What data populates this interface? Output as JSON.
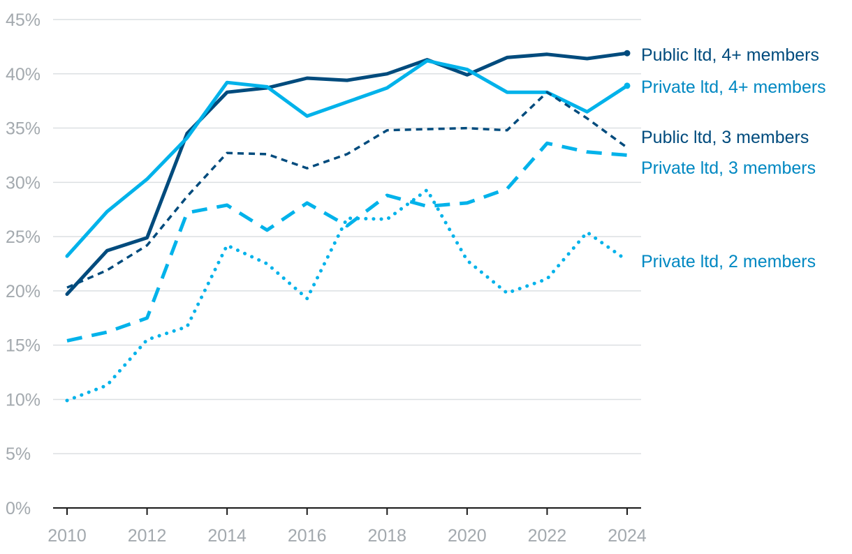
{
  "chart_data": {
    "type": "line",
    "title": "",
    "xlabel": "",
    "ylabel": "",
    "x": [
      2010,
      2011,
      2012,
      2013,
      2014,
      2015,
      2016,
      2017,
      2018,
      2019,
      2020,
      2021,
      2022,
      2023,
      2024
    ],
    "xticks": [
      "2010",
      "2012",
      "2014",
      "2016",
      "2018",
      "2020",
      "2022",
      "2024"
    ],
    "yticks": [
      "0%",
      "5%",
      "10%",
      "15%",
      "20%",
      "25%",
      "30%",
      "35%",
      "40%",
      "45%"
    ],
    "ylim": [
      0,
      45
    ],
    "grid": true,
    "legend": "direct labels at right",
    "series": [
      {
        "name": "Public ltd, 4+ members",
        "color": "#004b7d",
        "style": "solid",
        "values": [
          19.7,
          23.7,
          24.9,
          34.5,
          38.3,
          38.7,
          39.6,
          39.4,
          40.0,
          41.3,
          39.9,
          41.5,
          41.8,
          41.4,
          41.9
        ]
      },
      {
        "name": "Private ltd, 4+ members",
        "color": "#00b2ea",
        "style": "solid",
        "values": [
          23.2,
          27.3,
          30.3,
          34.1,
          39.2,
          38.8,
          36.1,
          37.4,
          38.7,
          41.2,
          40.4,
          38.3,
          38.3,
          36.5,
          38.9
        ]
      },
      {
        "name": "Public ltd, 3 members",
        "color": "#004b7d",
        "style": "short-dash",
        "values": [
          20.3,
          21.9,
          24.2,
          28.7,
          32.7,
          32.6,
          31.3,
          32.6,
          34.8,
          34.9,
          35.0,
          34.8,
          38.3,
          35.9,
          33.2
        ]
      },
      {
        "name": "Private ltd, 3 members",
        "color": "#00b2ea",
        "style": "long-dash",
        "values": [
          15.4,
          16.2,
          17.5,
          27.2,
          27.9,
          25.6,
          28.1,
          26.0,
          28.8,
          27.8,
          28.1,
          29.4,
          33.6,
          32.8,
          32.5
        ]
      },
      {
        "name": "Private ltd, 2 members",
        "color": "#00b2ea",
        "style": "dotted",
        "values": [
          9.9,
          11.3,
          15.5,
          16.7,
          24.2,
          22.5,
          19.3,
          26.7,
          26.6,
          29.3,
          22.8,
          19.8,
          21.1,
          25.4,
          22.8
        ]
      }
    ],
    "label_colors": [
      "#004b7d",
      "#0088c2",
      "#004b7d",
      "#0088c2",
      "#0088c2"
    ],
    "colors": {
      "grid": "#dcdfe2",
      "axis": "#1a1a1a",
      "tick_text": "#a3a9ae"
    }
  }
}
